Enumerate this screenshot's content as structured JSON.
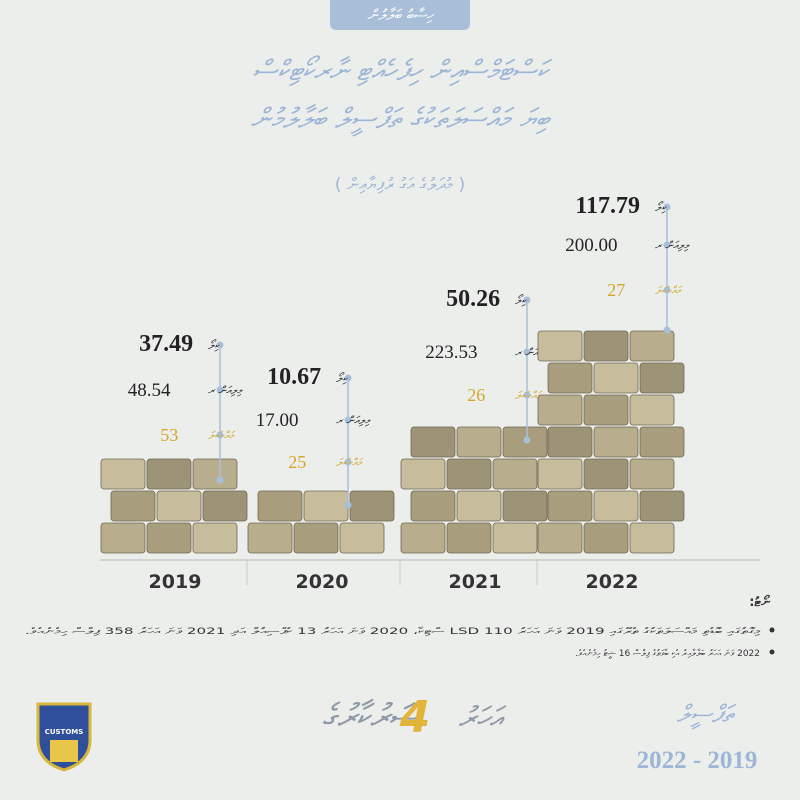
{
  "header": {
    "tag": "ހިސާބު ބަލާލުން",
    "title_lines": [
      "ކަސްޓަމްސްއިން ހިފެހެއްޓި ނާރކޯޓިކްސް",
      "ބިޔަ މައްސަލަތަކުގެ ތަފްސީލް ބަލާލުމުން"
    ],
    "subtitle": "( މުދަލުގެ އަގު ރުފިޔާއިން )"
  },
  "years": [
    {
      "year": "2019",
      "kg": "37.49",
      "kg_unit": "ކިލޯ",
      "value": "48.54",
      "value_unit": "މިލިއަން ރ",
      "cases": "53",
      "cases_unit": "މައްސަލަ"
    },
    {
      "year": "2020",
      "kg": "10.67",
      "kg_unit": "ކިލޯ",
      "value": "17.00",
      "value_unit": "މިލިއަން ރ",
      "cases": "25",
      "cases_unit": "މައްސަލަ"
    },
    {
      "year": "2021",
      "kg": "50.26",
      "kg_unit": "ކިލޯ",
      "value": "223.53",
      "value_unit": "މިލިއަން ރ",
      "cases": "26",
      "cases_unit": "މައްސަލަ"
    },
    {
      "year": "2022",
      "kg": "117.79",
      "kg_unit": "ކިލޯ",
      "value": "200.00",
      "value_unit": "މިލިއަން ރ",
      "cases": "27",
      "cases_unit": "މައްސަލަ"
    }
  ],
  "notes": {
    "heading": "ނޯޓު:",
    "items": [
      "މިގޮތުގައި ބޮޑެތި މައްސަލަތަކުގެ ތެރޭގައި 2019 ވަނަ އަހަރު LSD 110 ސްޓިކާ، 2020 ވަނަ އަހަރު 13 ކެޕްސިއުލް އަދި 2021 ވަނަ އަހަރު 358 ޕިލްސް ހިމެނެއެވެ.",
      "2022 ވަނަ އަހަރު ބަލާލާއިރު އެކި ބާވަތުގެ ޕިލްސް 16 ޝީޓު ހިމެނެއެވެ."
    ]
  },
  "footer": {
    "slogan_before": "ސަރުކާރުގެ",
    "number": "4",
    "slogan_after": "އަހަރު",
    "section": "ތަފްސީލް",
    "period": "2022 - 2019",
    "logo_text": "CUSTOMS"
  }
}
